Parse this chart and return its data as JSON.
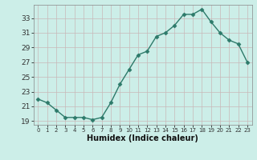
{
  "x": [
    0,
    1,
    2,
    3,
    4,
    5,
    6,
    7,
    8,
    9,
    10,
    11,
    12,
    13,
    14,
    15,
    16,
    17,
    18,
    19,
    20,
    21,
    22,
    23
  ],
  "y": [
    22.0,
    21.5,
    20.5,
    19.5,
    19.5,
    19.5,
    19.2,
    19.5,
    21.5,
    24.0,
    26.0,
    28.0,
    28.5,
    30.5,
    31.0,
    32.0,
    33.5,
    33.5,
    34.2,
    32.5,
    31.0,
    30.0,
    29.5,
    27.0
  ],
  "line_color": "#2d7a6a",
  "marker": "D",
  "marker_size": 2.5,
  "xlabel": "Humidex (Indice chaleur)",
  "bg_color": "#cceee8",
  "grid_color": "#c8b8b8",
  "ylim": [
    18.5,
    34.8
  ],
  "xlim": [
    -0.5,
    23.5
  ],
  "yticks": [
    19,
    21,
    23,
    25,
    27,
    29,
    31,
    33
  ],
  "xtick_labels": [
    "0",
    "1",
    "2",
    "3",
    "4",
    "5",
    "6",
    "7",
    "8",
    "9",
    "10",
    "11",
    "12",
    "13",
    "14",
    "15",
    "16",
    "17",
    "18",
    "19",
    "20",
    "21",
    "22",
    "23"
  ]
}
